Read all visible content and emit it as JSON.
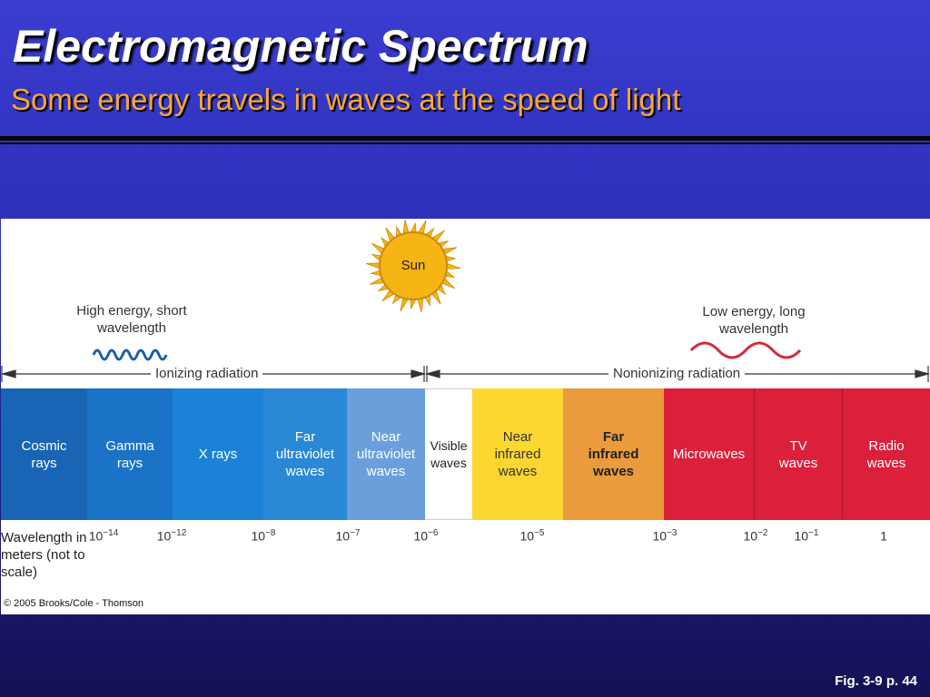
{
  "title": "Electromagnetic Spectrum",
  "subtitle": "Some energy travels in waves at the speed of light",
  "figure": {
    "sun_label": "Sun",
    "high_energy": "High energy, short wavelength",
    "low_energy": "Low energy, long wavelength",
    "ionizing": "Ionizing radiation",
    "nonionizing": "Nonionizing radiation",
    "bands": [
      {
        "label": "Cosmic rays",
        "color": "#1a64b6",
        "text_color": "#ffffff"
      },
      {
        "label": "Gamma rays",
        "color": "#1b73c8",
        "text_color": "#ffffff"
      },
      {
        "label": "X rays",
        "color": "#1c82d8",
        "text_color": "#ffffff"
      },
      {
        "label": "Far ultraviolet waves",
        "color": "#2a88d6",
        "text_color": "#ffffff"
      },
      {
        "label": "Near ultraviolet waves",
        "color": "#6a9fdc",
        "text_color": "#ffffff"
      },
      {
        "label": "Visible waves",
        "color": "#ffffff",
        "text_color": "#222222"
      },
      {
        "label": "Near infrared waves",
        "color": "#fcd731",
        "text_color": "#333333"
      },
      {
        "label": "Far infrared waves",
        "color": "#ea9b3c",
        "text_color": "#222222"
      },
      {
        "label": "Microwaves",
        "color": "#dc1f3b",
        "text_color": "#ffffff"
      },
      {
        "label": "TV waves",
        "color": "#dc1f3b",
        "text_color": "#ffffff"
      },
      {
        "label": "Radio waves",
        "color": "#dc1f3b",
        "text_color": "#ffffff"
      }
    ],
    "wavelength_label": "Wavelength in meters (not to scale)",
    "ticks": [
      {
        "base": "10",
        "exp": "−14"
      },
      {
        "base": "10",
        "exp": "−12"
      },
      {
        "base": "10",
        "exp": "−8"
      },
      {
        "base": "10",
        "exp": "−7"
      },
      {
        "base": "10",
        "exp": "−6"
      },
      {
        "base": "10",
        "exp": "−5"
      },
      {
        "base": "10",
        "exp": "−3"
      },
      {
        "base": "10",
        "exp": "−2"
      },
      {
        "base": "10",
        "exp": "−1"
      },
      {
        "base": "1",
        "exp": ""
      }
    ],
    "copyright": "© 2005 Brooks/Cole - Thomson"
  },
  "fig_ref": "Fig. 3-9 p. 44",
  "colors": {
    "title_text": "#ffffff",
    "subtitle_text": "#ffa733",
    "sun": "#f7b415",
    "short_wave": "#1a5fa8",
    "long_wave": "#d42a3a"
  }
}
